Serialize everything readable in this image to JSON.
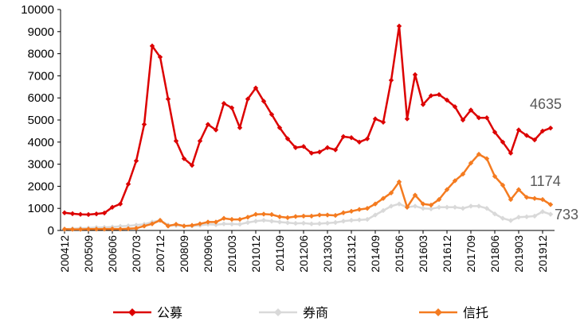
{
  "chart_data": {
    "type": "line",
    "title": "",
    "xlabel": "",
    "ylabel": "",
    "ylim": [
      0,
      10000
    ],
    "y_ticks": [
      0,
      1000,
      2000,
      3000,
      4000,
      5000,
      6000,
      7000,
      8000,
      9000,
      10000
    ],
    "x_tick_labels": [
      "200412",
      "200509",
      "200606",
      "200703",
      "200712",
      "200809",
      "200906",
      "201003",
      "201012",
      "201109",
      "201206",
      "201303",
      "201312",
      "201409",
      "201506",
      "201603",
      "201612",
      "201709",
      "201806",
      "201903",
      "201912"
    ],
    "x_tick_indices": [
      0,
      3,
      6,
      9,
      12,
      15,
      18,
      21,
      24,
      27,
      30,
      33,
      36,
      39,
      42,
      45,
      48,
      51,
      54,
      57,
      60
    ],
    "end_labels": {
      "公募": "4635",
      "券商": "733",
      "信托": "1174"
    },
    "series": [
      {
        "name": "公募",
        "color": "#DC0000",
        "marker": "diamond",
        "values": [
          800,
          760,
          730,
          720,
          750,
          790,
          1050,
          1200,
          2100,
          3150,
          4800,
          8350,
          7850,
          5950,
          4050,
          3250,
          2950,
          4050,
          4800,
          4550,
          5750,
          5550,
          4650,
          5950,
          6450,
          5850,
          5250,
          4650,
          4150,
          3750,
          3800,
          3500,
          3550,
          3750,
          3650,
          4250,
          4200,
          4000,
          4150,
          5050,
          4900,
          6800,
          9250,
          5050,
          7050,
          5700,
          6100,
          6150,
          5900,
          5600,
          5000,
          5450,
          5100,
          5100,
          4450,
          4000,
          3500,
          4550,
          4300,
          4100,
          4500,
          4635
        ]
      },
      {
        "name": "券商",
        "color": "#D9D9D9",
        "marker": "diamond",
        "values": [
          60,
          80,
          100,
          110,
          130,
          140,
          160,
          190,
          210,
          240,
          280,
          380,
          460,
          250,
          220,
          210,
          200,
          230,
          280,
          260,
          300,
          290,
          280,
          360,
          420,
          460,
          420,
          380,
          350,
          320,
          330,
          300,
          310,
          330,
          360,
          420,
          460,
          480,
          500,
          700,
          900,
          1100,
          1200,
          1050,
          1100,
          1000,
          980,
          1050,
          1050,
          1050,
          1000,
          1100,
          1100,
          1000,
          750,
          550,
          450,
          600,
          620,
          650,
          850,
          733
        ]
      },
      {
        "name": "信托",
        "color": "#F47B20",
        "marker": "diamond",
        "values": [
          60,
          50,
          50,
          60,
          60,
          60,
          70,
          60,
          80,
          100,
          200,
          300,
          460,
          200,
          280,
          200,
          230,
          300,
          380,
          380,
          550,
          500,
          500,
          600,
          730,
          740,
          720,
          620,
          580,
          630,
          650,
          650,
          700,
          700,
          680,
          800,
          870,
          950,
          1000,
          1200,
          1450,
          1700,
          2200,
          1050,
          1600,
          1200,
          1150,
          1400,
          1850,
          2250,
          2550,
          3050,
          3450,
          3250,
          2450,
          2050,
          1400,
          1850,
          1500,
          1450,
          1400,
          1174
        ]
      }
    ]
  }
}
